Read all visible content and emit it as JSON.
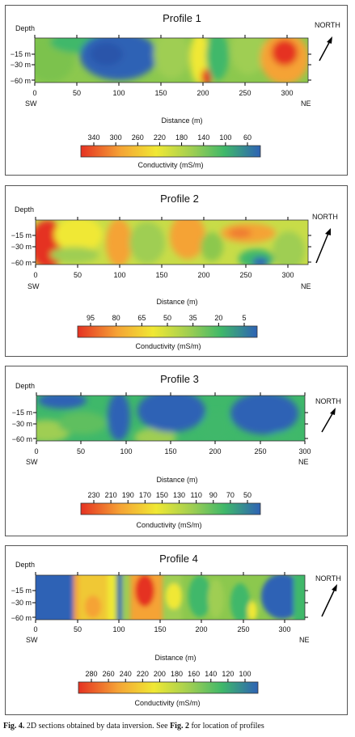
{
  "figure_caption": {
    "label": "Fig. 4.",
    "text": " 2D sections obtained by data inversion. See ",
    "ref": "Fig. 2",
    "text2": " for location of profiles"
  },
  "chart_data": [
    {
      "type": "heatmap",
      "title": "Profile 1",
      "ylabel": "Depth",
      "xlabel": "Distance (m)",
      "direction_label": "NORTH",
      "start_label": "SW",
      "end_label": "NE",
      "x_ticks": [
        0,
        50,
        100,
        150,
        200,
        250,
        300
      ],
      "y_ticks": [
        "−15 m",
        "−30 m",
        "−60 m"
      ],
      "xlim": [
        0,
        325
      ],
      "colorbar_label": "Conductivity (mS/m)",
      "colorbar_ticks": [
        "340",
        "300",
        "260",
        "220",
        "180",
        "140",
        "100",
        "60"
      ],
      "colors": [
        "#e53222",
        "#f5a335",
        "#f0e834",
        "#9fce52",
        "#3fb86a",
        "#2e62b5"
      ]
    },
    {
      "type": "heatmap",
      "title": "Profile 2",
      "ylabel": "Depth",
      "xlabel": "Distance (m)",
      "direction_label": "NORTH",
      "start_label": "SW",
      "end_label": "NE",
      "x_ticks": [
        0,
        50,
        100,
        150,
        200,
        250,
        300
      ],
      "y_ticks": [
        "−15 m",
        "−30 m",
        "−60 m"
      ],
      "xlim": [
        0,
        325
      ],
      "colorbar_label": "Conductivity (mS/m)",
      "colorbar_ticks": [
        "95",
        "80",
        "65",
        "50",
        "35",
        "20",
        "5"
      ],
      "colors": [
        "#e53222",
        "#f5a335",
        "#f0e834",
        "#9fce52",
        "#3fb86a",
        "#2e62b5"
      ]
    },
    {
      "type": "heatmap",
      "title": "Profile 3",
      "ylabel": "Depth",
      "xlabel": "Distance (m)",
      "direction_label": "NORTH",
      "start_label": "SW",
      "end_label": "NE",
      "x_ticks": [
        0,
        50,
        100,
        150,
        200,
        250,
        300
      ],
      "y_ticks": [
        "−15 m",
        "−30 m",
        "−60 m"
      ],
      "xlim": [
        0,
        300
      ],
      "colorbar_label": "Conductivity (mS/m)",
      "colorbar_ticks": [
        "230",
        "210",
        "190",
        "170",
        "150",
        "130",
        "110",
        "90",
        "70",
        "50"
      ],
      "colors": [
        "#e53222",
        "#f5a335",
        "#f0e834",
        "#9fce52",
        "#3fb86a",
        "#2e62b5"
      ]
    },
    {
      "type": "heatmap",
      "title": "Profile 4",
      "ylabel": "Depth",
      "xlabel": "Distance (m)",
      "direction_label": "NORTH",
      "start_label": "SW",
      "end_label": "NE",
      "x_ticks": [
        0,
        50,
        100,
        150,
        200,
        250,
        300
      ],
      "y_ticks": [
        "−15 m",
        "−30 m",
        "−60 m"
      ],
      "xlim": [
        0,
        325
      ],
      "colorbar_label": "Conductivity (mS/m)",
      "colorbar_ticks": [
        "280",
        "260",
        "240",
        "220",
        "200",
        "180",
        "160",
        "140",
        "120",
        "100"
      ],
      "colors": [
        "#e53222",
        "#f5a335",
        "#f0e834",
        "#9fce52",
        "#3fb86a",
        "#2e62b5"
      ]
    }
  ]
}
